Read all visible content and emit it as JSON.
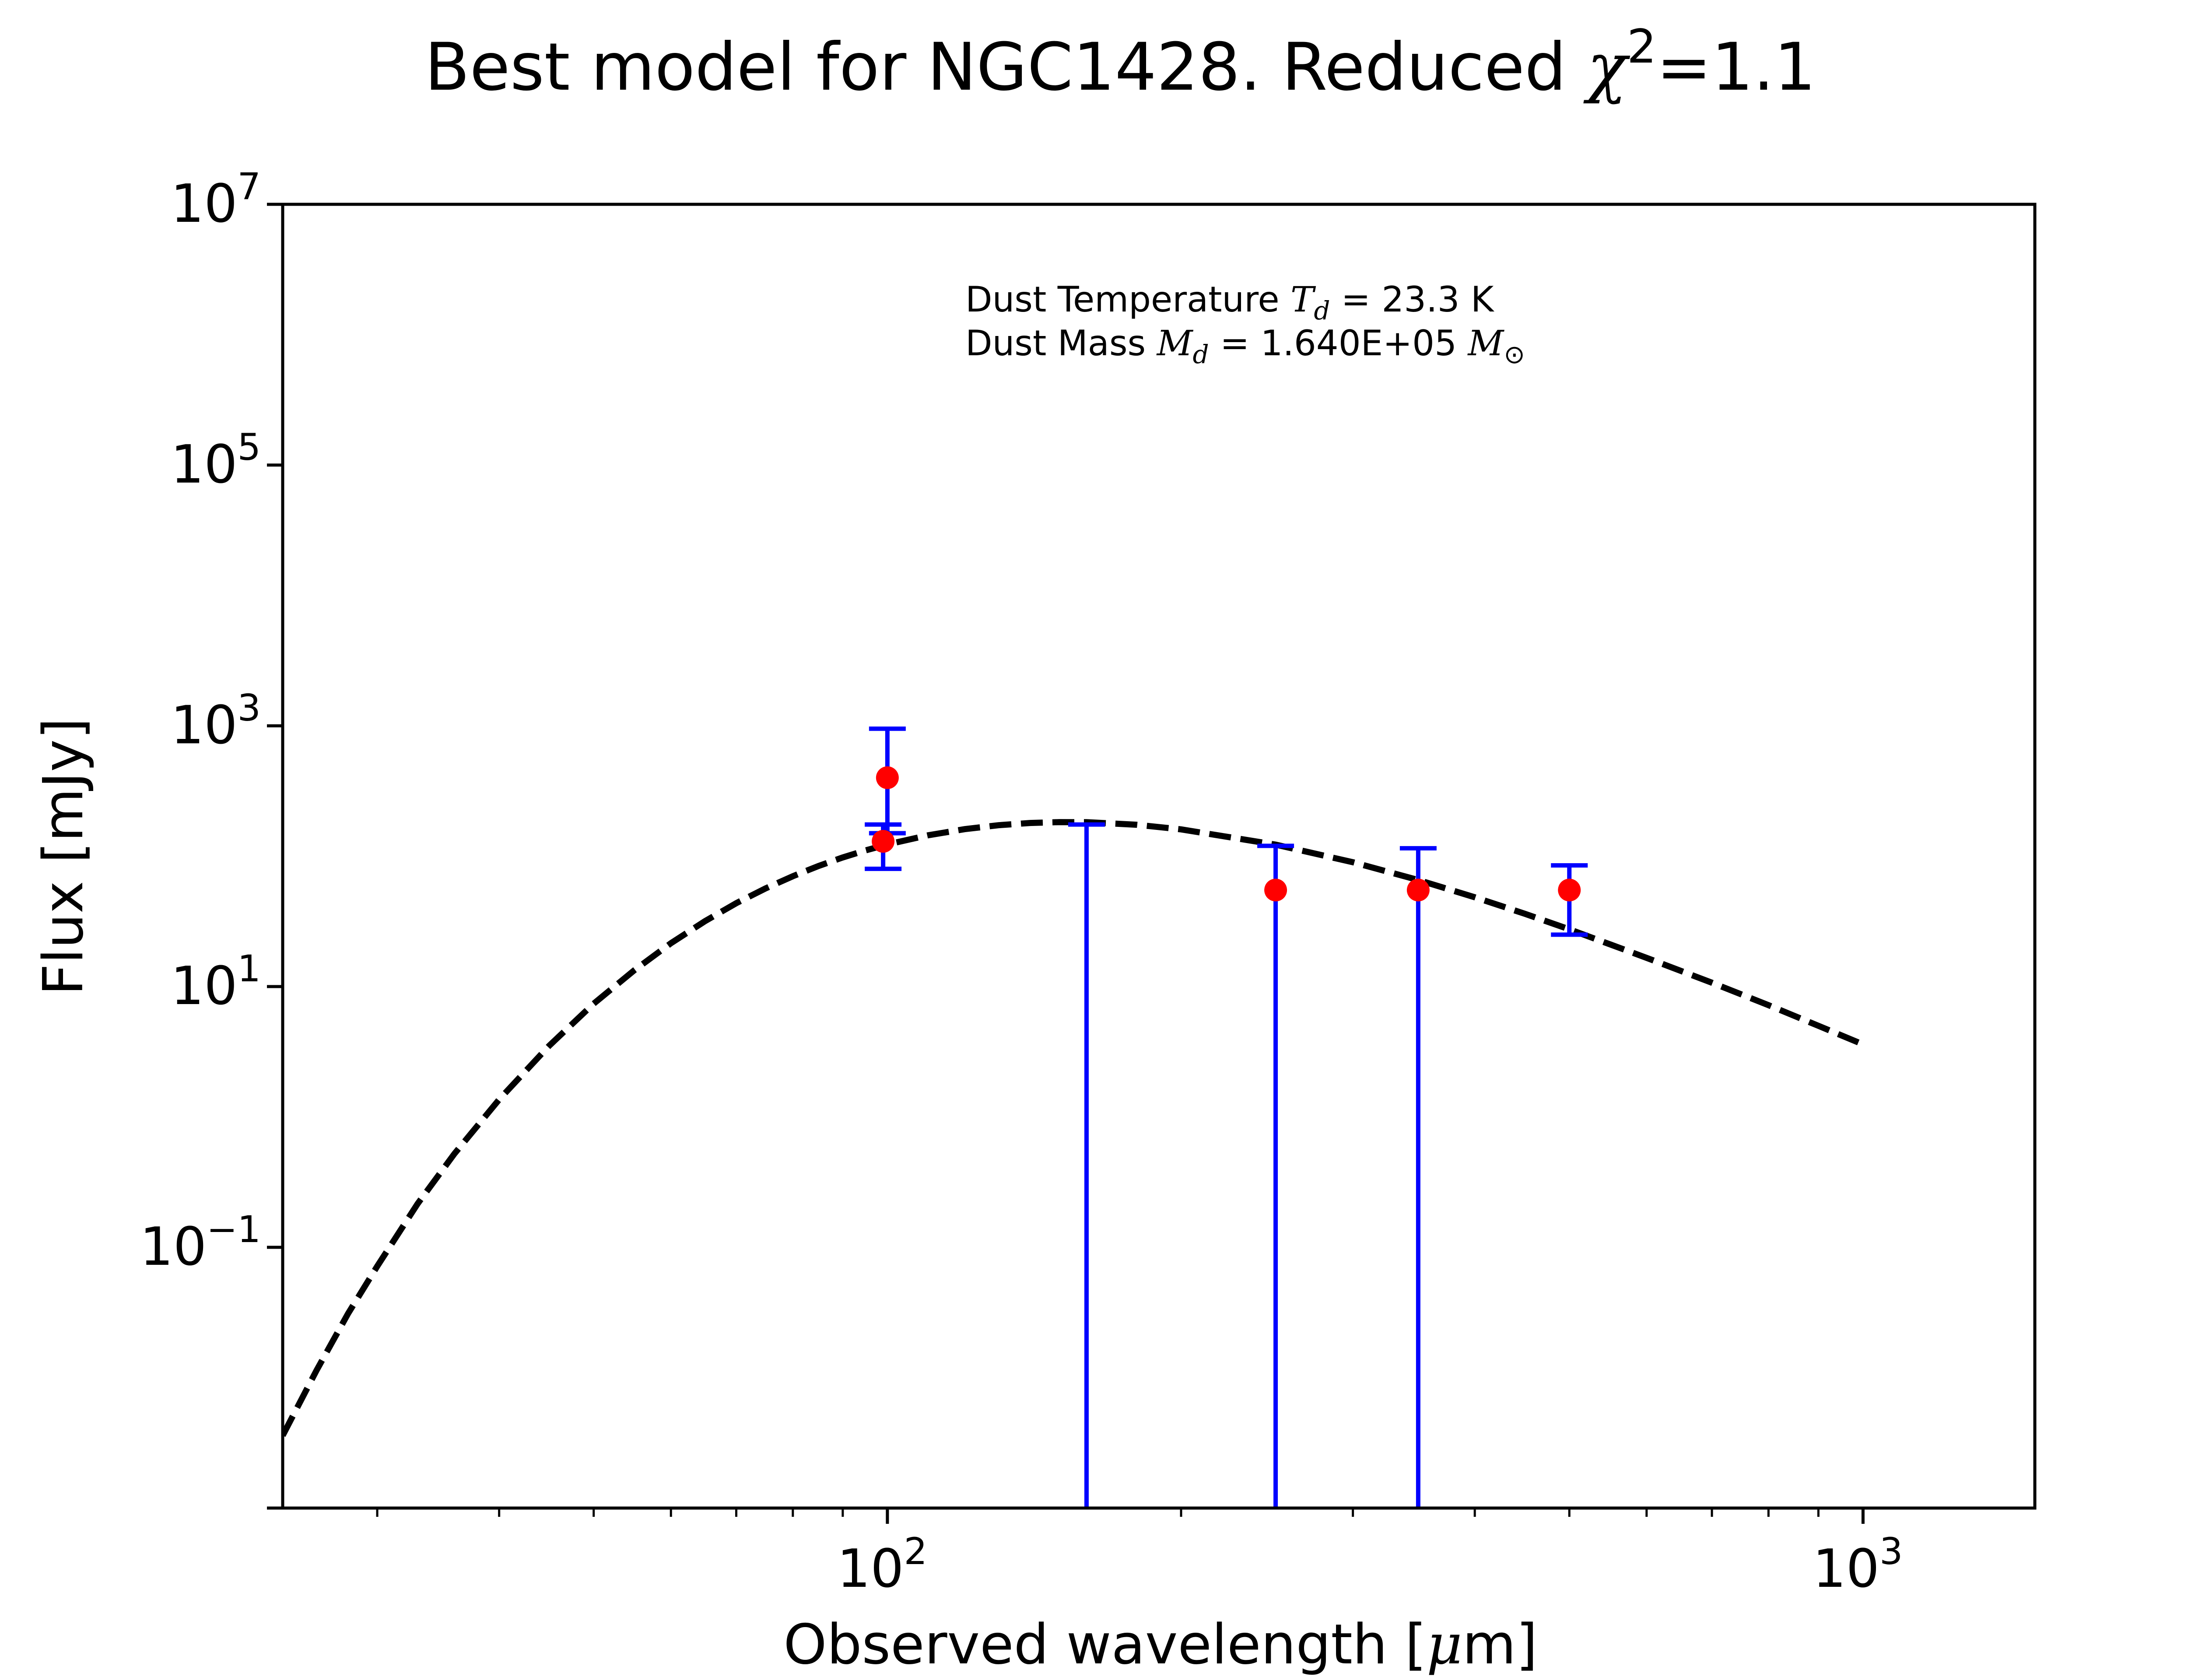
{
  "chart_data": {
    "type": "scatter",
    "title": {
      "text": "Best model for NGC1428. Reduced ",
      "chi_symbol": "χ",
      "chi_sup": "2",
      "suffix": "=1.1"
    },
    "xlabel": {
      "prefix": "Observed wavelength [",
      "mu": "μ",
      "suffix": "m]"
    },
    "ylabel": "Flux [mJy]",
    "xscale": "log",
    "yscale": "log",
    "xlim": [
      24,
      1500
    ],
    "ylim": [
      0.001,
      10000000
    ],
    "x_ticks": [
      {
        "value": 100,
        "base": "10",
        "exp": "2"
      },
      {
        "value": 1000,
        "base": "10",
        "exp": "3"
      }
    ],
    "y_ticks": [
      {
        "value": 0.1,
        "base": "10",
        "exp": "−1"
      },
      {
        "value": 10,
        "base": "10",
        "exp": "1"
      },
      {
        "value": 1000,
        "base": "10",
        "exp": "3"
      },
      {
        "value": 100000,
        "base": "10",
        "exp": "5"
      },
      {
        "value": 10000000,
        "base": "10",
        "exp": "7"
      }
    ],
    "annotation": {
      "line1_prefix": "Dust Temperature ",
      "line1_sym": "T",
      "line1_sub": "d",
      "line1_value": " = 23.3 K",
      "line2_prefix": "Dust Mass ",
      "line2_sym": "M",
      "line2_sub": "d",
      "line2_value": " = 1.640E+05 ",
      "line2_unit_sym": "M",
      "line2_unit_sub": "⊙"
    },
    "model": {
      "style": "dashed",
      "color": "#000000",
      "x": [
        24,
        26,
        28,
        30,
        33,
        36,
        40,
        45,
        50,
        55,
        60,
        65,
        70,
        75,
        80,
        85,
        90,
        95,
        100,
        110,
        120,
        130,
        140,
        150,
        160,
        180,
        200,
        250,
        300,
        350,
        400,
        450,
        500,
        600,
        700,
        800,
        900,
        1000
      ],
      "y": [
        0.0036,
        0.0114,
        0.031,
        0.0716,
        0.216,
        0.523,
        1.36,
        3.51,
        7.39,
        13.3,
        21.5,
        31.7,
        43.6,
        56.6,
        70.2,
        84.1,
        97.8,
        110.8,
        123.1,
        144.5,
        161.2,
        172.8,
        179.7,
        182.6,
        182.3,
        174.3,
        160.6,
        122.6,
        89.9,
        65.7,
        48.4,
        36.2,
        27.5,
        16.6,
        10.7,
        7.2,
        5.0,
        3.6
      ]
    },
    "series": [
      {
        "kind": "detection",
        "color": "#ff0000",
        "errcolor": "#0000ff",
        "points": [
          {
            "x": 100,
            "y": 400,
            "ylow": 150,
            "yhigh": 950
          },
          {
            "x": 99,
            "y": 130,
            "ylow": 80,
            "yhigh": 175
          },
          {
            "x": 250,
            "y": 55,
            "ylow": 0.001,
            "yhigh": 120
          },
          {
            "x": 350,
            "y": 55,
            "ylow": 0.001,
            "yhigh": 115
          },
          {
            "x": 500,
            "y": 55,
            "ylow": 25,
            "yhigh": 85
          }
        ]
      },
      {
        "kind": "upper-limit",
        "errcolor": "#0000ff",
        "points": [
          {
            "x": 160,
            "ylow": 0.001,
            "yhigh": 175
          }
        ]
      }
    ]
  }
}
